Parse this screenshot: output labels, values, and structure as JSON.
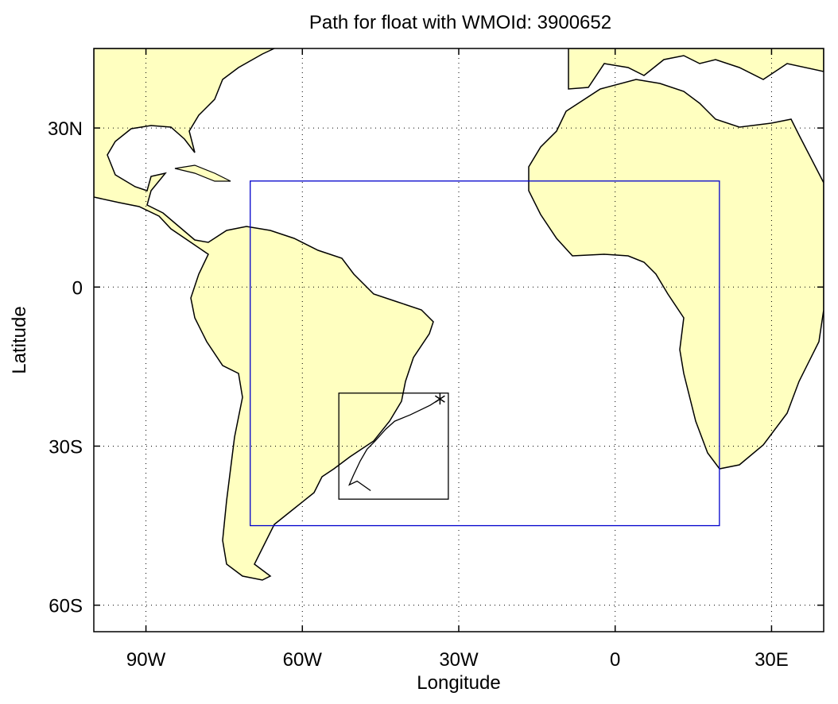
{
  "chart_data": {
    "type": "map",
    "title": "Path for float with WMOId: 3900652",
    "x_label": "Longitude",
    "y_label": "Latitude",
    "xlim": [
      -100,
      40
    ],
    "ylim": [
      -65,
      45
    ],
    "xticks": [
      {
        "value": -90,
        "label": "90W"
      },
      {
        "value": -60,
        "label": "60W"
      },
      {
        "value": -30,
        "label": "30W"
      },
      0,
      {
        "value": 30,
        "label": "30E"
      }
    ],
    "yticks": [
      {
        "value": 30,
        "label": "30N"
      },
      0,
      {
        "value": -30,
        "label": "30S"
      },
      {
        "value": -60,
        "label": "60S"
      }
    ],
    "grid": true,
    "land_color": "#ffffc0",
    "regions": [
      {
        "lon": [
          -70,
          20
        ],
        "lat": [
          -45,
          20
        ],
        "color": "#0000cc"
      },
      {
        "lon": [
          -53,
          -32
        ],
        "lat": [
          -40,
          -20
        ],
        "color": "#000000"
      }
    ],
    "path": {
      "color": "#000000",
      "x": [
        -33.6,
        -35.5,
        -39.3,
        -42.3,
        -44,
        -46.1,
        -47.6,
        -48.9,
        -50.2,
        -51,
        -49.5,
        -46.9
      ],
      "values": [
        -21.1,
        -22.3,
        -24.1,
        -25.3,
        -26.8,
        -29.1,
        -30.6,
        -32.8,
        -35.5,
        -37.3,
        -36.6,
        -38.4
      ]
    }
  }
}
